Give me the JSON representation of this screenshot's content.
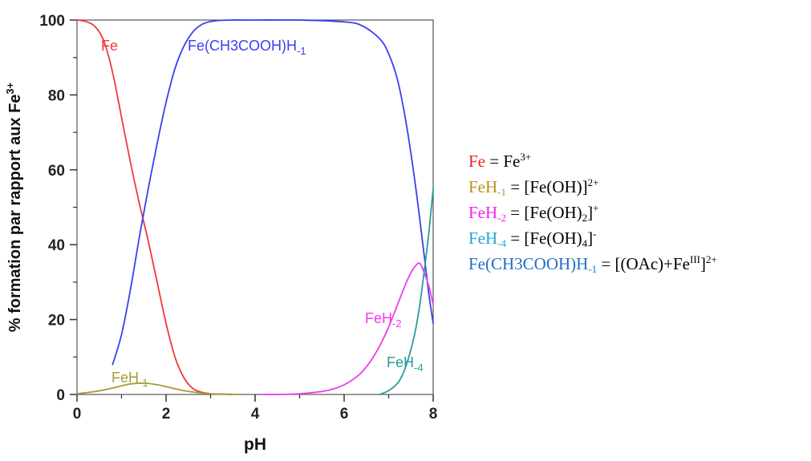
{
  "chart_data": {
    "type": "line",
    "xlabel": "pH",
    "ylabel": "% formation par rapport aux Fe",
    "ylabel_sup": "3+",
    "xlim": [
      0,
      8
    ],
    "ylim": [
      0,
      100
    ],
    "xticks": [
      0,
      2,
      4,
      6,
      8
    ],
    "yticks": [
      0,
      20,
      40,
      60,
      80,
      100
    ],
    "series": [
      {
        "name": "Fe",
        "label": "Fe",
        "label_sub": "",
        "color": "#ee3a3a",
        "x": [
          0,
          0.2,
          0.4,
          0.6,
          0.8,
          1.0,
          1.2,
          1.4,
          1.5,
          1.6,
          1.8,
          2.0,
          2.2,
          2.4,
          2.6,
          2.8,
          3.0,
          3.2,
          3.5
        ],
        "y": [
          100,
          99.6,
          98.3,
          94.5,
          86,
          74,
          62,
          51,
          46,
          41,
          30,
          19,
          10,
          4.5,
          1.6,
          0.6,
          0.2,
          0.1,
          0
        ]
      },
      {
        "name": "FeH-1",
        "label": "FeH",
        "label_sub": "-1",
        "color": "#a69c33",
        "x": [
          0,
          0.3,
          0.6,
          0.9,
          1.2,
          1.5,
          1.8,
          2.1,
          2.4,
          2.7,
          3.0,
          3.3,
          3.6
        ],
        "y": [
          0.2,
          0.6,
          1.2,
          2.0,
          2.8,
          3.0,
          2.6,
          1.8,
          1.0,
          0.5,
          0.2,
          0.1,
          0
        ]
      },
      {
        "name": "Fe(CH3COOH)H-1",
        "label": "Fe(CH3COOH)H",
        "label_sub": "-1",
        "color": "#3b3fef",
        "x": [
          0.8,
          1.0,
          1.2,
          1.4,
          1.6,
          1.8,
          2.0,
          2.2,
          2.4,
          2.6,
          2.8,
          3.0,
          3.2,
          3.5,
          4.0,
          5.0,
          6.0,
          6.4,
          6.8,
          7.0,
          7.2,
          7.4,
          7.6,
          7.8,
          7.9,
          8.0
        ],
        "y": [
          8,
          16,
          28,
          42,
          55,
          67,
          78,
          87,
          93,
          96.8,
          98.8,
          99.6,
          99.9,
          100,
          100,
          100,
          99.5,
          98.5,
          95,
          91,
          84,
          72,
          56,
          37,
          27,
          19
        ]
      },
      {
        "name": "FeH-2",
        "label": "FeH",
        "label_sub": "-2",
        "color": "#f03af0",
        "x": [
          4.15,
          4.5,
          5.0,
          5.5,
          5.8,
          6.0,
          6.2,
          6.4,
          6.6,
          6.8,
          7.0,
          7.2,
          7.4,
          7.5,
          7.6,
          7.7,
          7.8,
          7.9,
          8.0
        ],
        "y": [
          0,
          0,
          0.2,
          0.8,
          1.6,
          2.6,
          4.0,
          6.0,
          9.0,
          13,
          18,
          24,
          30,
          32.5,
          34.3,
          35,
          32.5,
          29,
          24
        ]
      },
      {
        "name": "FeH-4",
        "label": "FeH",
        "label_sub": "-4",
        "color": "#2a9c9c",
        "x": [
          6.8,
          7.0,
          7.2,
          7.3,
          7.4,
          7.5,
          7.6,
          7.7,
          7.8,
          7.9,
          8.0
        ],
        "y": [
          0,
          1,
          3,
          5,
          8,
          12,
          17,
          24,
          33,
          43,
          55
        ]
      }
    ]
  },
  "legend": [
    {
      "name": "Fe",
      "color": "#ee2222",
      "sub": "",
      "eq": " = Fe",
      "eq_sup": "3+",
      "eq_tail": ""
    },
    {
      "name": "FeH",
      "color": "#b8941c",
      "sub": "-1",
      "eq": " = [Fe(OH)]",
      "eq_sup": "2+",
      "eq_tail": ""
    },
    {
      "name": "FeH",
      "color": "#ee22ee",
      "sub": "-2",
      "eq": " = [Fe(OH)",
      "eq_sub": "2",
      "eq_after": "]",
      "eq_sup": "+",
      "eq_tail": ""
    },
    {
      "name": "FeH",
      "color": "#1aa6d6",
      "sub": "-4",
      "eq": " = [Fe(OH)",
      "eq_sub": "4",
      "eq_after": "]",
      "eq_sup": "-",
      "eq_tail": ""
    },
    {
      "name": "Fe(CH3COOH)H",
      "color": "#1f6fbf",
      "sub": "-1",
      "eq": " = [(OAc)+Fe",
      "eq_sup": "III",
      "eq_after": "]",
      "eq_sup2": "2+"
    }
  ]
}
